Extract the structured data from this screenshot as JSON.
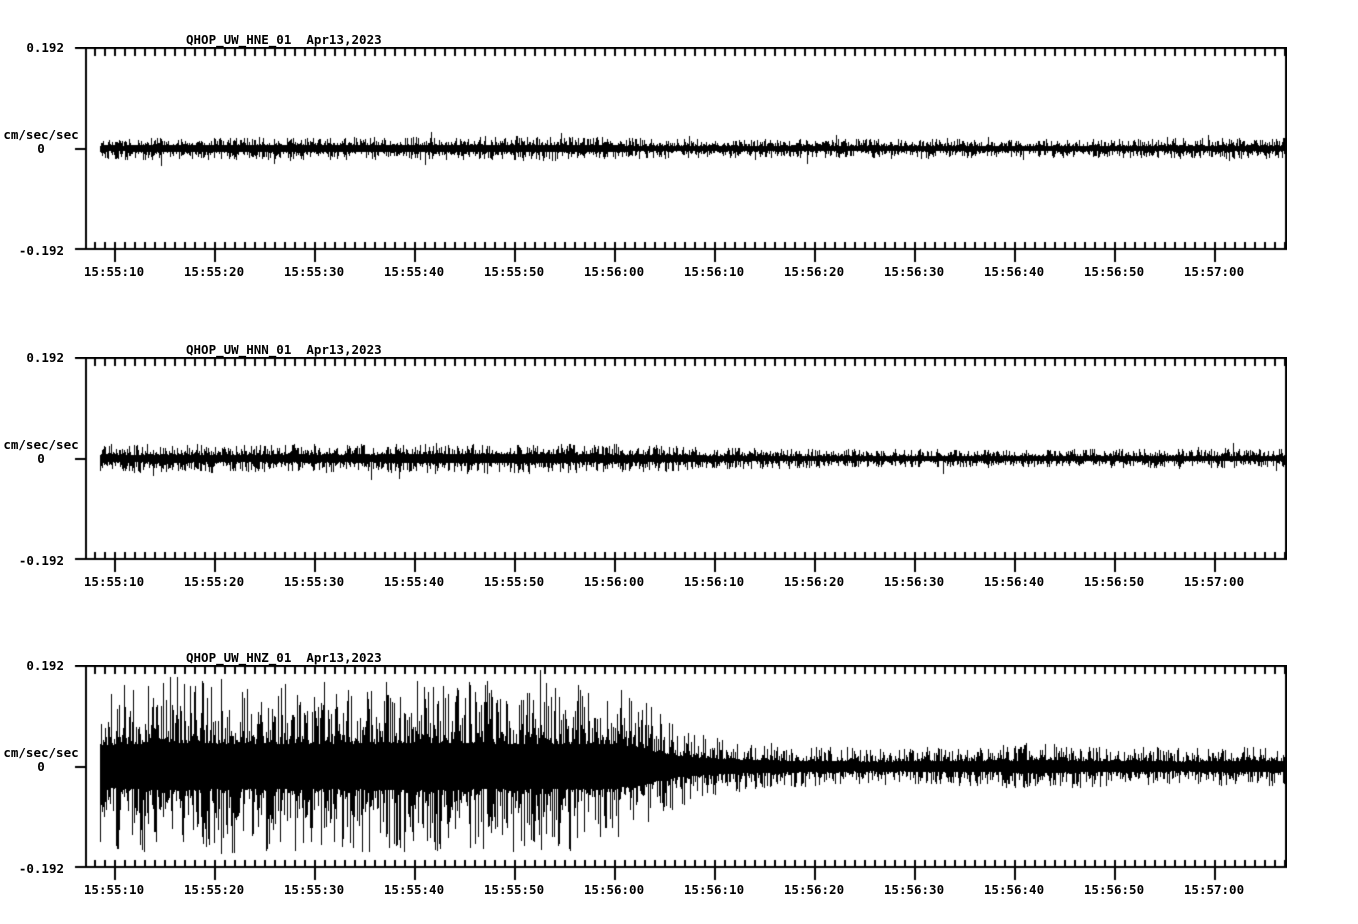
{
  "page": {
    "background": "#ffffff",
    "trace_color": "#000000",
    "text_color": "#000000"
  },
  "chart_data": [
    {
      "type": "line",
      "kind": "seismogram-waveform",
      "station": "QHOP_UW_HNE_01",
      "date": "Apr13,2023",
      "ylabel": "cm/sec/sec",
      "y_tick_labels": [
        "0.192",
        "0",
        "-0.192"
      ],
      "ylim": [
        -0.192,
        0.192
      ],
      "duration_sec": 120.2,
      "first_major_tick_sec": 2.9,
      "major_interval_sec": 10,
      "minor_interval_sec": 1,
      "x_tick_labels": [
        "15:55:10",
        "15:55:20",
        "15:55:30",
        "15:55:40",
        "15:55:50",
        "15:56:00",
        "15:56:10",
        "15:56:20",
        "15:56:30",
        "15:56:40",
        "15:56:50",
        "15:57:00"
      ],
      "trace_start_sec": 1.5,
      "envelope_points": [
        [
          1.5,
          0.019
        ],
        [
          30,
          0.02
        ],
        [
          50,
          0.021
        ],
        [
          58,
          0.017
        ],
        [
          70,
          0.016
        ],
        [
          85,
          0.017
        ],
        [
          95,
          0.015
        ],
        [
          105,
          0.017
        ],
        [
          120.2,
          0.018
        ]
      ],
      "spike_probability": 0.02,
      "spike_gain": 1.8
    },
    {
      "type": "line",
      "kind": "seismogram-waveform",
      "station": "QHOP_UW_HNN_01",
      "date": "Apr13,2023",
      "ylabel": "cm/sec/sec",
      "y_tick_labels": [
        "0.192",
        "0",
        "-0.192"
      ],
      "ylim": [
        -0.192,
        0.192
      ],
      "duration_sec": 120.2,
      "first_major_tick_sec": 2.9,
      "major_interval_sec": 10,
      "minor_interval_sec": 1,
      "x_tick_labels": [
        "15:55:10",
        "15:55:20",
        "15:55:30",
        "15:55:40",
        "15:55:50",
        "15:56:00",
        "15:56:10",
        "15:56:20",
        "15:56:30",
        "15:56:40",
        "15:56:50",
        "15:57:00"
      ],
      "trace_start_sec": 1.5,
      "envelope_points": [
        [
          1.5,
          0.024
        ],
        [
          25,
          0.025
        ],
        [
          45,
          0.026
        ],
        [
          55,
          0.024
        ],
        [
          62,
          0.019
        ],
        [
          75,
          0.016
        ],
        [
          90,
          0.015
        ],
        [
          105,
          0.016
        ],
        [
          120.2,
          0.016
        ]
      ],
      "spike_probability": 0.02,
      "spike_gain": 1.7
    },
    {
      "type": "line",
      "kind": "seismogram-waveform",
      "station": "QHOP_UW_HNZ_01",
      "date": "Apr13,2023",
      "ylabel": "cm/sec/sec",
      "y_tick_labels": [
        "0.192",
        "0",
        "-0.192"
      ],
      "ylim": [
        -0.192,
        0.192
      ],
      "duration_sec": 120.2,
      "first_major_tick_sec": 2.9,
      "major_interval_sec": 10,
      "minor_interval_sec": 1,
      "x_tick_labels": [
        "15:55:10",
        "15:55:20",
        "15:55:30",
        "15:55:40",
        "15:55:50",
        "15:56:00",
        "15:56:10",
        "15:56:20",
        "15:56:30",
        "15:56:40",
        "15:56:50",
        "15:57:00"
      ],
      "trace_start_sec": 1.5,
      "envelope_points": [
        [
          1.5,
          0.135
        ],
        [
          8,
          0.15
        ],
        [
          20,
          0.14
        ],
        [
          35,
          0.15
        ],
        [
          45,
          0.14
        ],
        [
          52,
          0.145
        ],
        [
          55,
          0.125
        ],
        [
          57,
          0.095
        ],
        [
          59,
          0.07
        ],
        [
          62,
          0.052
        ],
        [
          65,
          0.043
        ],
        [
          70,
          0.037
        ],
        [
          78,
          0.031
        ],
        [
          88,
          0.033
        ],
        [
          95,
          0.04
        ],
        [
          102,
          0.035
        ],
        [
          110,
          0.031
        ],
        [
          120.2,
          0.034
        ]
      ],
      "spike_probability": 0.012,
      "spike_gain": 1.3
    }
  ]
}
